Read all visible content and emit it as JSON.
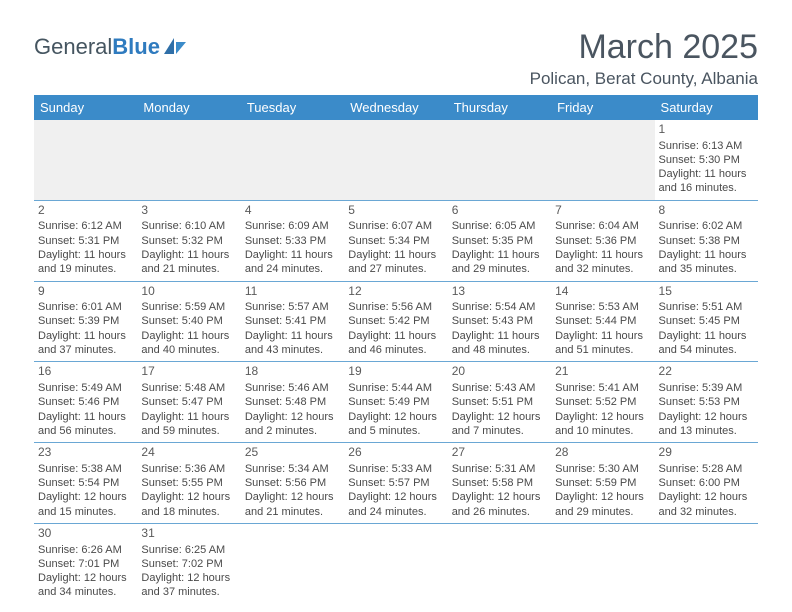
{
  "logo": {
    "textA": "General",
    "textB": "Blue"
  },
  "title": "March 2025",
  "location": "Polican, Berat County, Albania",
  "colors": {
    "headerBg": "#3b8bc9",
    "rowBorder": "#6aa7d4",
    "blank": "#f0f0f0",
    "text": "#4a4a4a"
  },
  "dayHeaders": [
    "Sunday",
    "Monday",
    "Tuesday",
    "Wednesday",
    "Thursday",
    "Friday",
    "Saturday"
  ],
  "weeks": [
    [
      null,
      null,
      null,
      null,
      null,
      null,
      {
        "n": "1",
        "sr": "Sunrise: 6:13 AM",
        "ss": "Sunset: 5:30 PM",
        "dl": "Daylight: 11 hours and 16 minutes."
      }
    ],
    [
      {
        "n": "2",
        "sr": "Sunrise: 6:12 AM",
        "ss": "Sunset: 5:31 PM",
        "dl": "Daylight: 11 hours and 19 minutes."
      },
      {
        "n": "3",
        "sr": "Sunrise: 6:10 AM",
        "ss": "Sunset: 5:32 PM",
        "dl": "Daylight: 11 hours and 21 minutes."
      },
      {
        "n": "4",
        "sr": "Sunrise: 6:09 AM",
        "ss": "Sunset: 5:33 PM",
        "dl": "Daylight: 11 hours and 24 minutes."
      },
      {
        "n": "5",
        "sr": "Sunrise: 6:07 AM",
        "ss": "Sunset: 5:34 PM",
        "dl": "Daylight: 11 hours and 27 minutes."
      },
      {
        "n": "6",
        "sr": "Sunrise: 6:05 AM",
        "ss": "Sunset: 5:35 PM",
        "dl": "Daylight: 11 hours and 29 minutes."
      },
      {
        "n": "7",
        "sr": "Sunrise: 6:04 AM",
        "ss": "Sunset: 5:36 PM",
        "dl": "Daylight: 11 hours and 32 minutes."
      },
      {
        "n": "8",
        "sr": "Sunrise: 6:02 AM",
        "ss": "Sunset: 5:38 PM",
        "dl": "Daylight: 11 hours and 35 minutes."
      }
    ],
    [
      {
        "n": "9",
        "sr": "Sunrise: 6:01 AM",
        "ss": "Sunset: 5:39 PM",
        "dl": "Daylight: 11 hours and 37 minutes."
      },
      {
        "n": "10",
        "sr": "Sunrise: 5:59 AM",
        "ss": "Sunset: 5:40 PM",
        "dl": "Daylight: 11 hours and 40 minutes."
      },
      {
        "n": "11",
        "sr": "Sunrise: 5:57 AM",
        "ss": "Sunset: 5:41 PM",
        "dl": "Daylight: 11 hours and 43 minutes."
      },
      {
        "n": "12",
        "sr": "Sunrise: 5:56 AM",
        "ss": "Sunset: 5:42 PM",
        "dl": "Daylight: 11 hours and 46 minutes."
      },
      {
        "n": "13",
        "sr": "Sunrise: 5:54 AM",
        "ss": "Sunset: 5:43 PM",
        "dl": "Daylight: 11 hours and 48 minutes."
      },
      {
        "n": "14",
        "sr": "Sunrise: 5:53 AM",
        "ss": "Sunset: 5:44 PM",
        "dl": "Daylight: 11 hours and 51 minutes."
      },
      {
        "n": "15",
        "sr": "Sunrise: 5:51 AM",
        "ss": "Sunset: 5:45 PM",
        "dl": "Daylight: 11 hours and 54 minutes."
      }
    ],
    [
      {
        "n": "16",
        "sr": "Sunrise: 5:49 AM",
        "ss": "Sunset: 5:46 PM",
        "dl": "Daylight: 11 hours and 56 minutes."
      },
      {
        "n": "17",
        "sr": "Sunrise: 5:48 AM",
        "ss": "Sunset: 5:47 PM",
        "dl": "Daylight: 11 hours and 59 minutes."
      },
      {
        "n": "18",
        "sr": "Sunrise: 5:46 AM",
        "ss": "Sunset: 5:48 PM",
        "dl": "Daylight: 12 hours and 2 minutes."
      },
      {
        "n": "19",
        "sr": "Sunrise: 5:44 AM",
        "ss": "Sunset: 5:49 PM",
        "dl": "Daylight: 12 hours and 5 minutes."
      },
      {
        "n": "20",
        "sr": "Sunrise: 5:43 AM",
        "ss": "Sunset: 5:51 PM",
        "dl": "Daylight: 12 hours and 7 minutes."
      },
      {
        "n": "21",
        "sr": "Sunrise: 5:41 AM",
        "ss": "Sunset: 5:52 PM",
        "dl": "Daylight: 12 hours and 10 minutes."
      },
      {
        "n": "22",
        "sr": "Sunrise: 5:39 AM",
        "ss": "Sunset: 5:53 PM",
        "dl": "Daylight: 12 hours and 13 minutes."
      }
    ],
    [
      {
        "n": "23",
        "sr": "Sunrise: 5:38 AM",
        "ss": "Sunset: 5:54 PM",
        "dl": "Daylight: 12 hours and 15 minutes."
      },
      {
        "n": "24",
        "sr": "Sunrise: 5:36 AM",
        "ss": "Sunset: 5:55 PM",
        "dl": "Daylight: 12 hours and 18 minutes."
      },
      {
        "n": "25",
        "sr": "Sunrise: 5:34 AM",
        "ss": "Sunset: 5:56 PM",
        "dl": "Daylight: 12 hours and 21 minutes."
      },
      {
        "n": "26",
        "sr": "Sunrise: 5:33 AM",
        "ss": "Sunset: 5:57 PM",
        "dl": "Daylight: 12 hours and 24 minutes."
      },
      {
        "n": "27",
        "sr": "Sunrise: 5:31 AM",
        "ss": "Sunset: 5:58 PM",
        "dl": "Daylight: 12 hours and 26 minutes."
      },
      {
        "n": "28",
        "sr": "Sunrise: 5:30 AM",
        "ss": "Sunset: 5:59 PM",
        "dl": "Daylight: 12 hours and 29 minutes."
      },
      {
        "n": "29",
        "sr": "Sunrise: 5:28 AM",
        "ss": "Sunset: 6:00 PM",
        "dl": "Daylight: 12 hours and 32 minutes."
      }
    ],
    [
      {
        "n": "30",
        "sr": "Sunrise: 6:26 AM",
        "ss": "Sunset: 7:01 PM",
        "dl": "Daylight: 12 hours and 34 minutes."
      },
      {
        "n": "31",
        "sr": "Sunrise: 6:25 AM",
        "ss": "Sunset: 7:02 PM",
        "dl": "Daylight: 12 hours and 37 minutes."
      },
      null,
      null,
      null,
      null,
      null
    ]
  ]
}
